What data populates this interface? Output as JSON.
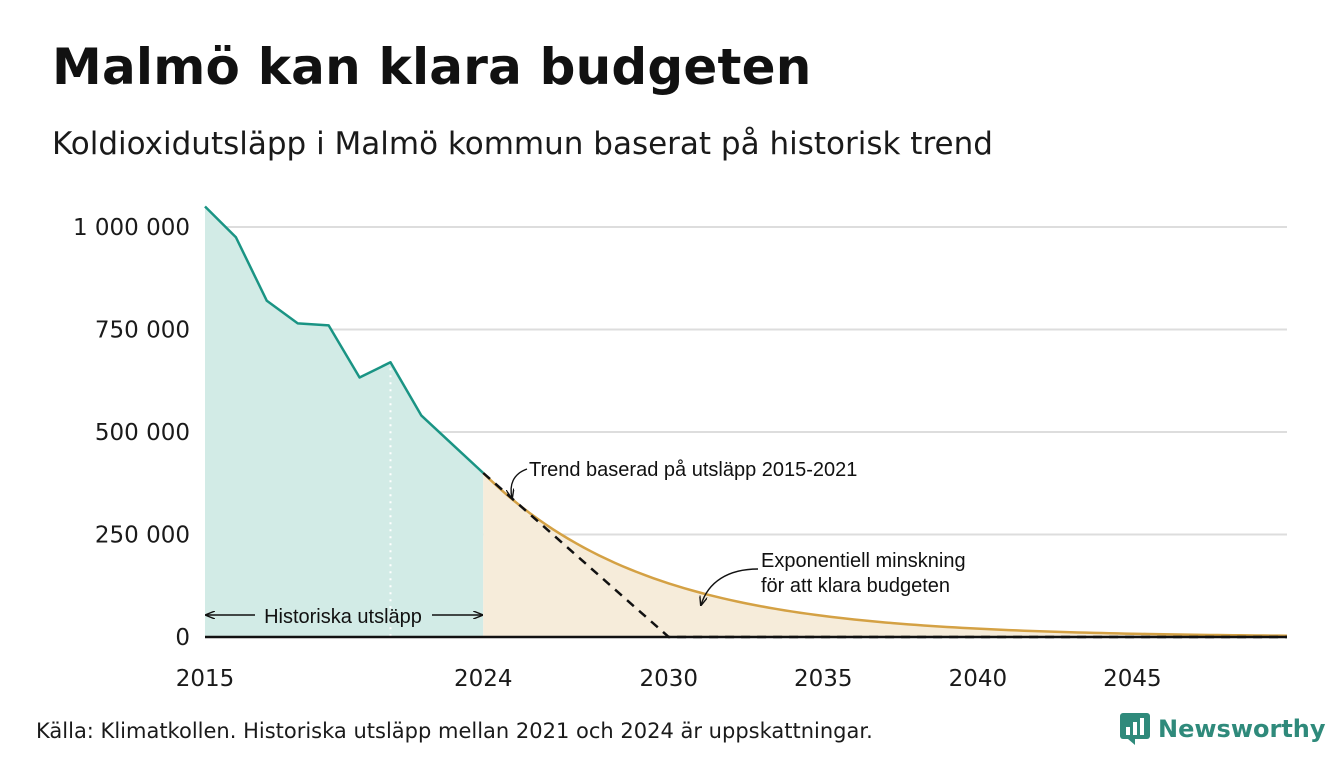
{
  "header": {
    "title": "Malmö kan klara budgeten",
    "subtitle": "Koldioxidutsläpp i Malmö kommun baserat på historisk trend"
  },
  "footer": {
    "source": "Källa: Klimatkollen. Historiska utsläpp mellan 2021 och 2024 är uppskattningar.",
    "brand": "Newsworthy"
  },
  "colors": {
    "historical_line": "#1a9484",
    "historical_fill": "#d2ebe6",
    "exponential_line": "#d4a144",
    "exponential_fill": "#f6ecda",
    "trend_line": "#111111",
    "grid": "#dddddd",
    "brand": "#2f8a7b"
  },
  "chart_data": {
    "type": "line",
    "title": "Malmö kan klara budgeten",
    "subtitle": "Koldioxidutsläpp i Malmö kommun baserat på historisk trend",
    "xlabel": "",
    "ylabel": "",
    "xlim": [
      2015,
      2050
    ],
    "ylim": [
      0,
      1050000
    ],
    "x_ticks": [
      2015,
      2024,
      2030,
      2035,
      2040,
      2045
    ],
    "x_tick_labels": [
      "2015",
      "2024",
      "2030",
      "2035",
      "2040",
      "2045"
    ],
    "y_ticks": [
      0,
      250000,
      500000,
      750000,
      1000000
    ],
    "y_tick_labels": [
      "0",
      "250 000",
      "500 000",
      "750 000",
      "1 000 000"
    ],
    "grid": true,
    "series": [
      {
        "name": "Historiska utsläpp",
        "style": "solid-area",
        "x": [
          2015,
          2016,
          2017,
          2018,
          2019,
          2020,
          2021,
          2022,
          2023,
          2024
        ],
        "values": [
          1050000,
          975000,
          820000,
          765000,
          760000,
          633000,
          670000,
          540000,
          470000,
          400000
        ]
      },
      {
        "name": "Exponentiell minskning för att klara budgeten",
        "style": "solid-area",
        "x_start": 2024,
        "x_end": 2050,
        "start_value": 400000,
        "annual_decay_rate": 0.17
      },
      {
        "name": "Trend baserad på utsläpp 2015-2021",
        "style": "dashed",
        "x": [
          2024,
          2030,
          2050
        ],
        "values": [
          400000,
          0,
          0
        ]
      }
    ],
    "annotations": {
      "historical_marker_year": 2021,
      "historical_span": [
        2015,
        2024
      ],
      "historical_label": "Historiska utsläpp",
      "trend_label": "Trend baserad på utsläpp 2015-2021",
      "exp_label_line1": "Exponentiell minskning",
      "exp_label_line2": "för att klara budgeten"
    }
  }
}
